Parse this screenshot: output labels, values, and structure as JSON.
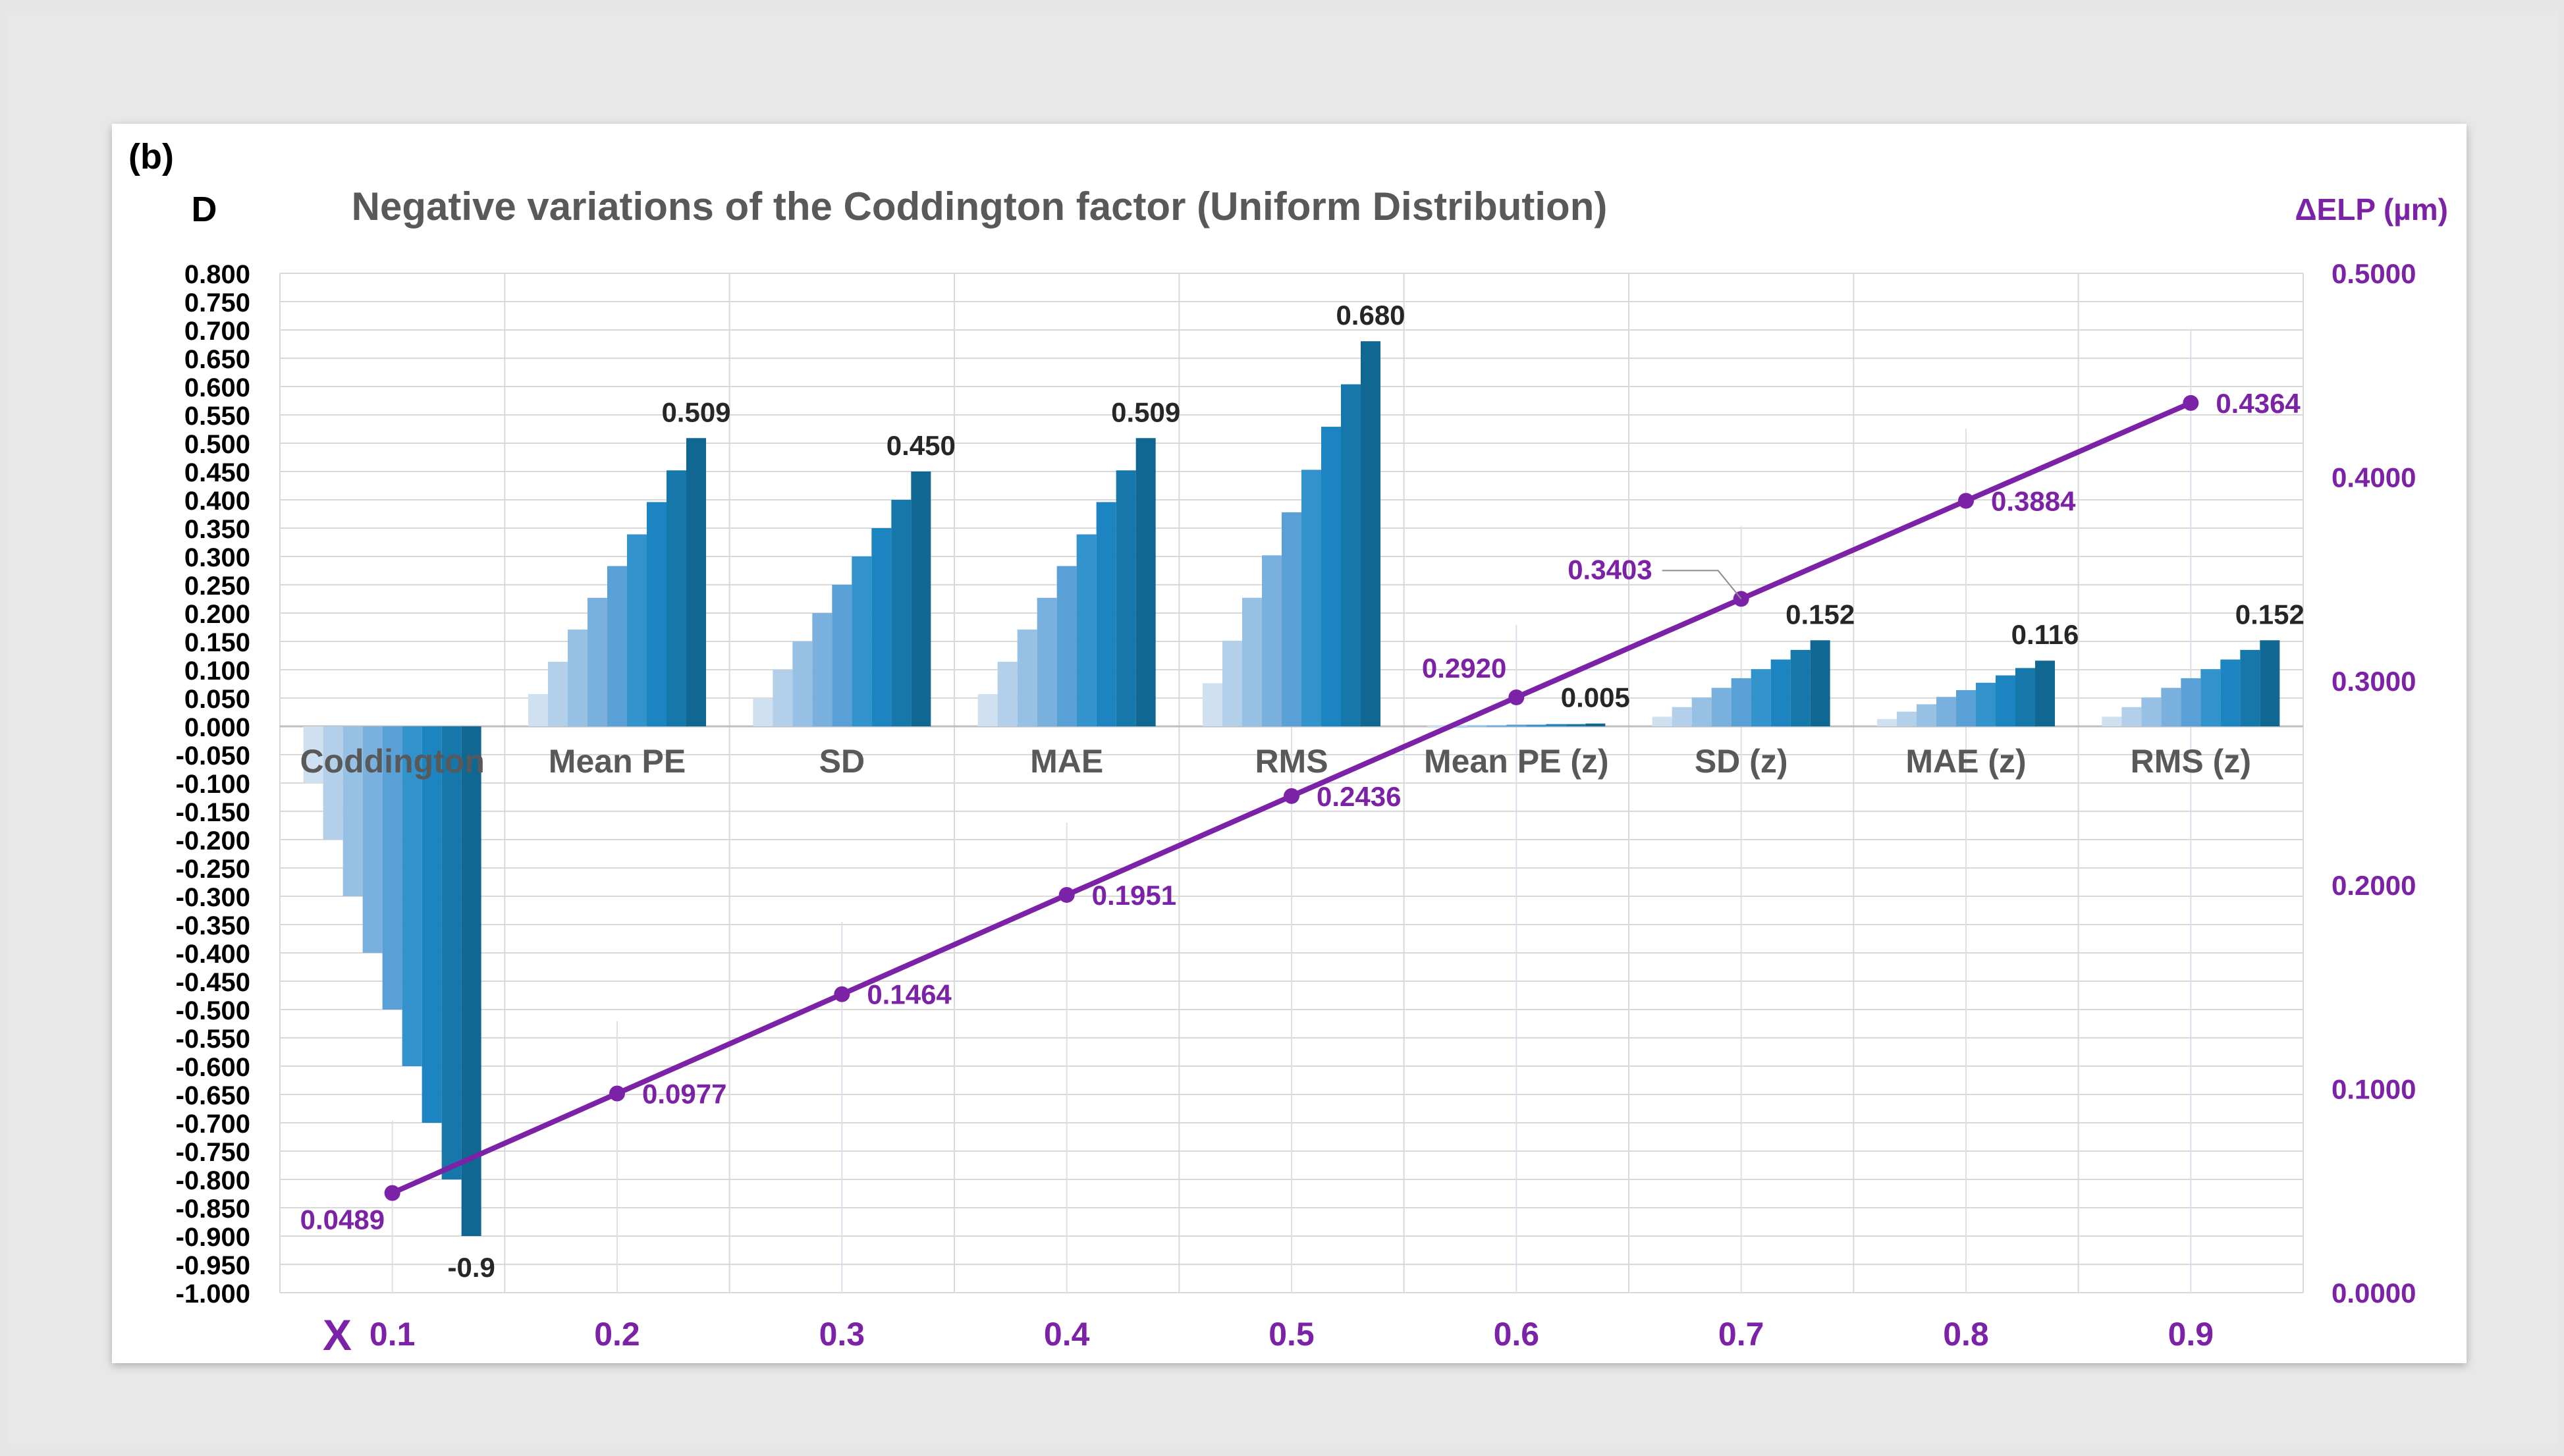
{
  "chart_data": {
    "type": "bar+line",
    "panel_label": "(b)",
    "title": "Negative variations of the Coddington factor (Uniform Distribution)",
    "left_axis_label": "D",
    "right_axis_label": "ΔELP (µm)",
    "x_axis_symbol": "X",
    "left_axis": {
      "min": -1.0,
      "max": 0.8,
      "step": 0.05
    },
    "right_axis": {
      "min": 0.0,
      "max": 0.5,
      "step": 0.05
    },
    "x_values": [
      "0.1",
      "0.2",
      "0.3",
      "0.4",
      "0.5",
      "0.6",
      "0.7",
      "0.8",
      "0.9"
    ],
    "bar_groups": [
      {
        "name": "Coddington",
        "values": [
          -0.1,
          -0.2,
          -0.3,
          -0.4,
          -0.5,
          -0.6,
          -0.7,
          -0.8,
          -0.9
        ],
        "label": "-0.9"
      },
      {
        "name": "Mean PE",
        "values": [
          0.057,
          0.114,
          0.171,
          0.227,
          0.283,
          0.339,
          0.396,
          0.452,
          0.509
        ],
        "label": "0.509"
      },
      {
        "name": "SD",
        "values": [
          0.05,
          0.1,
          0.15,
          0.2,
          0.25,
          0.3,
          0.35,
          0.4,
          0.45
        ],
        "label": "0.450"
      },
      {
        "name": "MAE",
        "values": [
          0.057,
          0.114,
          0.171,
          0.227,
          0.283,
          0.339,
          0.396,
          0.452,
          0.509
        ],
        "label": "0.509"
      },
      {
        "name": "RMS",
        "values": [
          0.076,
          0.151,
          0.227,
          0.302,
          0.378,
          0.453,
          0.529,
          0.604,
          0.68
        ],
        "label": "0.680"
      },
      {
        "name": "Mean PE (z)",
        "values": [
          0.001,
          0.001,
          0.002,
          0.002,
          0.003,
          0.003,
          0.004,
          0.004,
          0.005
        ],
        "label": "0.005"
      },
      {
        "name": "SD (z)",
        "values": [
          0.017,
          0.034,
          0.051,
          0.068,
          0.085,
          0.101,
          0.118,
          0.135,
          0.152
        ],
        "label": "0.152"
      },
      {
        "name": "MAE (z)",
        "values": [
          0.013,
          0.026,
          0.039,
          0.052,
          0.064,
          0.077,
          0.09,
          0.103,
          0.116
        ],
        "label": "0.116"
      },
      {
        "name": "RMS (z)",
        "values": [
          0.017,
          0.034,
          0.051,
          0.068,
          0.085,
          0.101,
          0.118,
          0.135,
          0.152
        ],
        "label": "0.152"
      }
    ],
    "line_series": {
      "name": "ΔELP (µm)",
      "values": [
        0.0489,
        0.0977,
        0.1464,
        0.1951,
        0.2436,
        0.292,
        0.3403,
        0.3884,
        0.4364
      ],
      "labels": [
        "0.0489",
        "0.0977",
        "0.1464",
        "0.1951",
        "0.2436",
        "0.2920",
        "0.3403",
        "0.3884",
        "0.4364"
      ]
    },
    "bar_colors": [
      "#cfe0f0",
      "#b3cfe9",
      "#96c0e4",
      "#79b0dd",
      "#58a0d6",
      "#3192cc",
      "#1c85c1",
      "#1677aa",
      "#106791"
    ],
    "line_color": "#7b22a6",
    "grid": true
  }
}
